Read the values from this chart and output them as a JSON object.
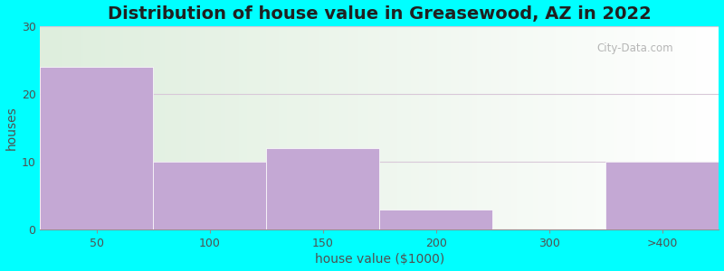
{
  "title": "Distribution of house value in Greasewood, AZ in 2022",
  "xlabel": "house value ($1000)",
  "ylabel": "houses",
  "categories": [
    "50",
    "100",
    "150",
    "200",
    "300",
    ">400"
  ],
  "values": [
    24,
    10,
    12,
    3,
    0,
    10
  ],
  "bar_color": "#C4A8D4",
  "ylim": [
    0,
    30
  ],
  "yticks": [
    0,
    10,
    20,
    30
  ],
  "bg_outer": "#00FFFF",
  "grid_color": "#D8C8D8",
  "title_fontsize": 14,
  "axis_label_fontsize": 10,
  "tick_fontsize": 9,
  "watermark_text": "City-Data.com"
}
